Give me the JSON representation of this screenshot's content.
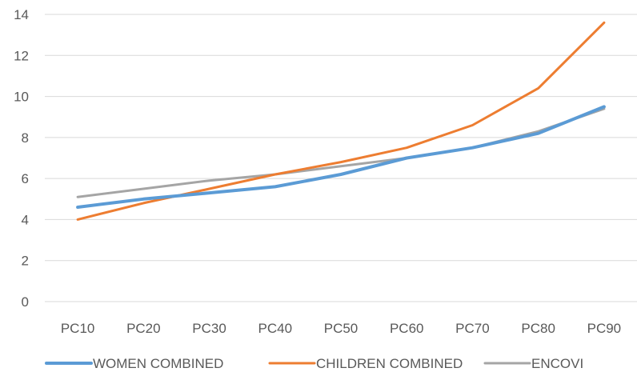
{
  "chart_data": {
    "type": "line",
    "categories": [
      "PC10",
      "PC20",
      "PC30",
      "PC40",
      "PC50",
      "PC60",
      "PC70",
      "PC80",
      "PC90"
    ],
    "ylim": [
      0,
      14
    ],
    "yticks": [
      0,
      2,
      4,
      6,
      8,
      10,
      12,
      14
    ],
    "grid": true,
    "legend_position": "bottom",
    "series": [
      {
        "name": "WOMEN COMBINED",
        "color": "#5b9bd5",
        "values": [
          4.6,
          5.0,
          5.3,
          5.6,
          6.2,
          7.0,
          7.5,
          8.2,
          9.5
        ]
      },
      {
        "name": "CHILDREN COMBINED",
        "color": "#ed7d31",
        "values": [
          4.0,
          4.8,
          5.5,
          6.2,
          6.8,
          7.5,
          8.6,
          10.4,
          13.6
        ]
      },
      {
        "name": "ENCOVI",
        "color": "#a5a5a5",
        "values": [
          5.1,
          5.5,
          5.9,
          6.2,
          6.6,
          7.0,
          7.5,
          8.3,
          9.4
        ]
      }
    ]
  }
}
